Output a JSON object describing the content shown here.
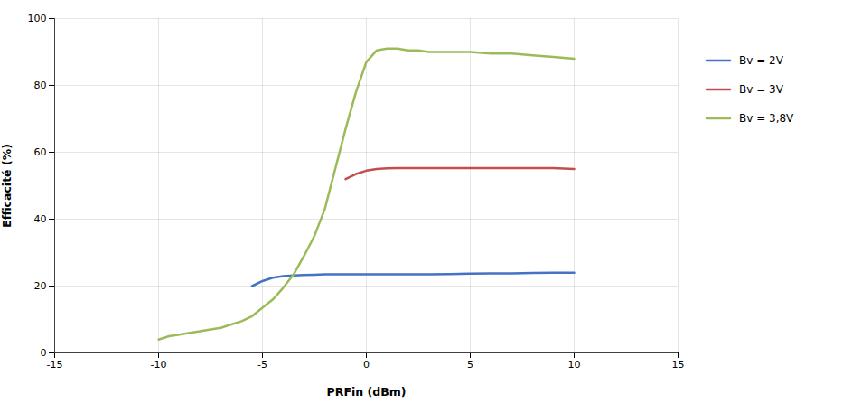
{
  "chart_data": {
    "type": "line",
    "xlabel": "PRFin (dBm)",
    "ylabel": "Efficacité (%)",
    "xlim": [
      -15,
      15
    ],
    "ylim": [
      0,
      100
    ],
    "xticks": [
      -15,
      -10,
      -5,
      0,
      5,
      10,
      15
    ],
    "yticks": [
      0,
      20,
      40,
      60,
      80,
      100
    ],
    "grid": true,
    "legend": "right",
    "series": [
      {
        "name": "Bv = 2V",
        "color": "#4472C4",
        "x": [
          -5.5,
          -5.0,
          -4.5,
          -4.0,
          -3.5,
          -3.0,
          -2.5,
          -2.0,
          -1.5,
          -1.0,
          -0.5,
          0.0,
          1.0,
          2.0,
          3.0,
          4.0,
          5.0,
          6.0,
          7.0,
          8.0,
          9.0,
          10.0
        ],
        "values": [
          20.0,
          21.5,
          22.5,
          23.0,
          23.2,
          23.3,
          23.4,
          23.5,
          23.5,
          23.5,
          23.5,
          23.5,
          23.5,
          23.5,
          23.5,
          23.6,
          23.7,
          23.8,
          23.8,
          23.9,
          24.0,
          24.0
        ]
      },
      {
        "name": "Bv = 3V",
        "color": "#C0504D",
        "x": [
          -1.0,
          -0.5,
          0.0,
          0.5,
          1.0,
          1.5,
          2.0,
          3.0,
          4.0,
          5.0,
          6.0,
          7.0,
          8.0,
          9.0,
          10.0
        ],
        "values": [
          52.0,
          53.5,
          54.5,
          55.0,
          55.2,
          55.3,
          55.3,
          55.3,
          55.3,
          55.3,
          55.3,
          55.3,
          55.3,
          55.3,
          55.0
        ]
      },
      {
        "name": "Bv = 3,8V",
        "color": "#9BBB59",
        "x": [
          -10.0,
          -9.5,
          -9.0,
          -8.5,
          -8.0,
          -7.5,
          -7.0,
          -6.5,
          -6.0,
          -5.5,
          -5.0,
          -4.5,
          -4.0,
          -3.5,
          -3.0,
          -2.5,
          -2.0,
          -1.5,
          -1.0,
          -0.5,
          0.0,
          0.5,
          1.0,
          1.5,
          2.0,
          2.5,
          3.0,
          4.0,
          5.0,
          6.0,
          7.0,
          8.0,
          9.0,
          10.0
        ],
        "values": [
          4.0,
          5.0,
          5.5,
          6.0,
          6.5,
          7.0,
          7.5,
          8.5,
          9.5,
          11.0,
          13.5,
          16.0,
          19.5,
          23.5,
          29.0,
          35.0,
          43.0,
          55.0,
          67.0,
          78.0,
          87.0,
          90.5,
          91.0,
          91.0,
          90.5,
          90.5,
          90.0,
          90.0,
          90.0,
          89.5,
          89.5,
          89.0,
          88.5,
          88.0
        ]
      }
    ]
  }
}
